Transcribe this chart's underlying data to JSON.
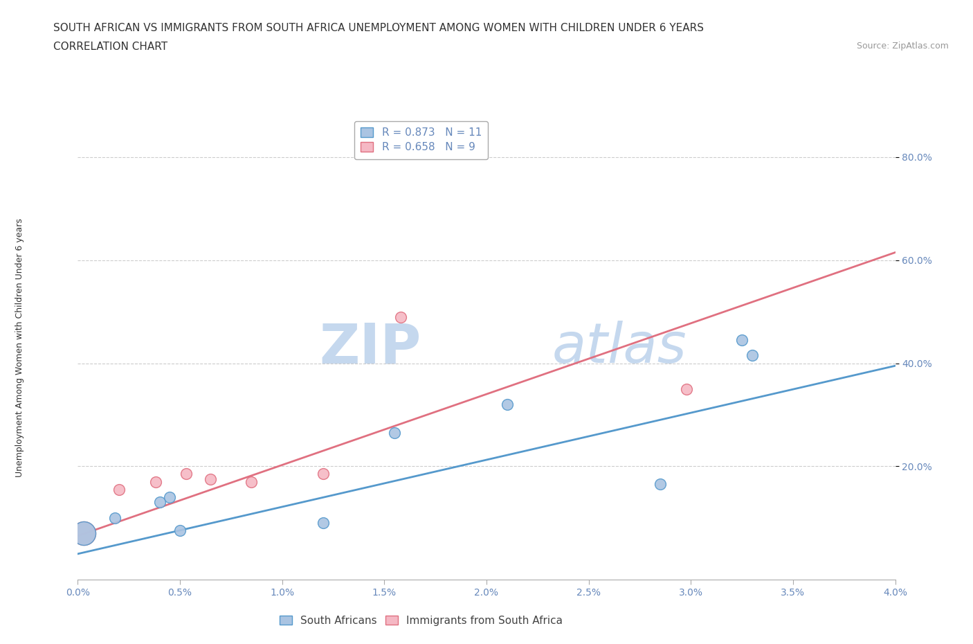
{
  "title_line1": "SOUTH AFRICAN VS IMMIGRANTS FROM SOUTH AFRICA UNEMPLOYMENT AMONG WOMEN WITH CHILDREN UNDER 6 YEARS",
  "title_line2": "CORRELATION CHART",
  "source_text": "Source: ZipAtlas.com",
  "ylabel": "Unemployment Among Women with Children Under 6 years",
  "xlim": [
    0.0,
    0.04
  ],
  "ylim": [
    -0.02,
    0.88
  ],
  "xtick_labels": [
    "0.0%",
    "0.5%",
    "1.0%",
    "1.5%",
    "2.0%",
    "2.5%",
    "3.0%",
    "3.5%",
    "4.0%"
  ],
  "xtick_values": [
    0.0,
    0.005,
    0.01,
    0.015,
    0.02,
    0.025,
    0.03,
    0.035,
    0.04
  ],
  "ytick_labels": [
    "20.0%",
    "40.0%",
    "60.0%",
    "80.0%"
  ],
  "ytick_values": [
    0.2,
    0.4,
    0.6,
    0.8
  ],
  "sa_color": "#aac4e2",
  "sa_line_color": "#5599cc",
  "imm_color": "#f5b8c4",
  "imm_line_color": "#e07080",
  "sa_r": 0.873,
  "sa_n": 11,
  "imm_r": 0.658,
  "imm_n": 9,
  "sa_points_x": [
    0.0003,
    0.0018,
    0.004,
    0.0045,
    0.005,
    0.012,
    0.0155,
    0.021,
    0.0285,
    0.0325,
    0.033
  ],
  "sa_points_y": [
    0.07,
    0.1,
    0.13,
    0.14,
    0.075,
    0.09,
    0.265,
    0.32,
    0.165,
    0.445,
    0.415
  ],
  "imm_points_x": [
    0.0003,
    0.002,
    0.0038,
    0.0053,
    0.0065,
    0.0085,
    0.012,
    0.0158,
    0.0298
  ],
  "imm_points_y": [
    0.07,
    0.155,
    0.17,
    0.185,
    0.175,
    0.17,
    0.185,
    0.49,
    0.35
  ],
  "sa_large_idx": 0,
  "imm_large_idx": 0,
  "sa_trendline_x": [
    0.0,
    0.04
  ],
  "sa_trendline_y": [
    0.03,
    0.395
  ],
  "imm_trendline_x": [
    0.0,
    0.04
  ],
  "imm_trendline_y": [
    0.065,
    0.615
  ],
  "legend_label_sa": "South Africans",
  "legend_label_imm": "Immigrants from South Africa",
  "grid_color": "#cccccc",
  "bg_color": "#ffffff",
  "watermark_zip": "ZIP",
  "watermark_atlas": "atlas",
  "watermark_color": "#c5d8ee",
  "marker_size": 130,
  "large_marker_size": 600,
  "title_fontsize": 11,
  "subtitle_fontsize": 11,
  "axis_label_fontsize": 9,
  "tick_fontsize": 10,
  "legend_fontsize": 11,
  "source_fontsize": 9,
  "tick_color": "#6688bb"
}
